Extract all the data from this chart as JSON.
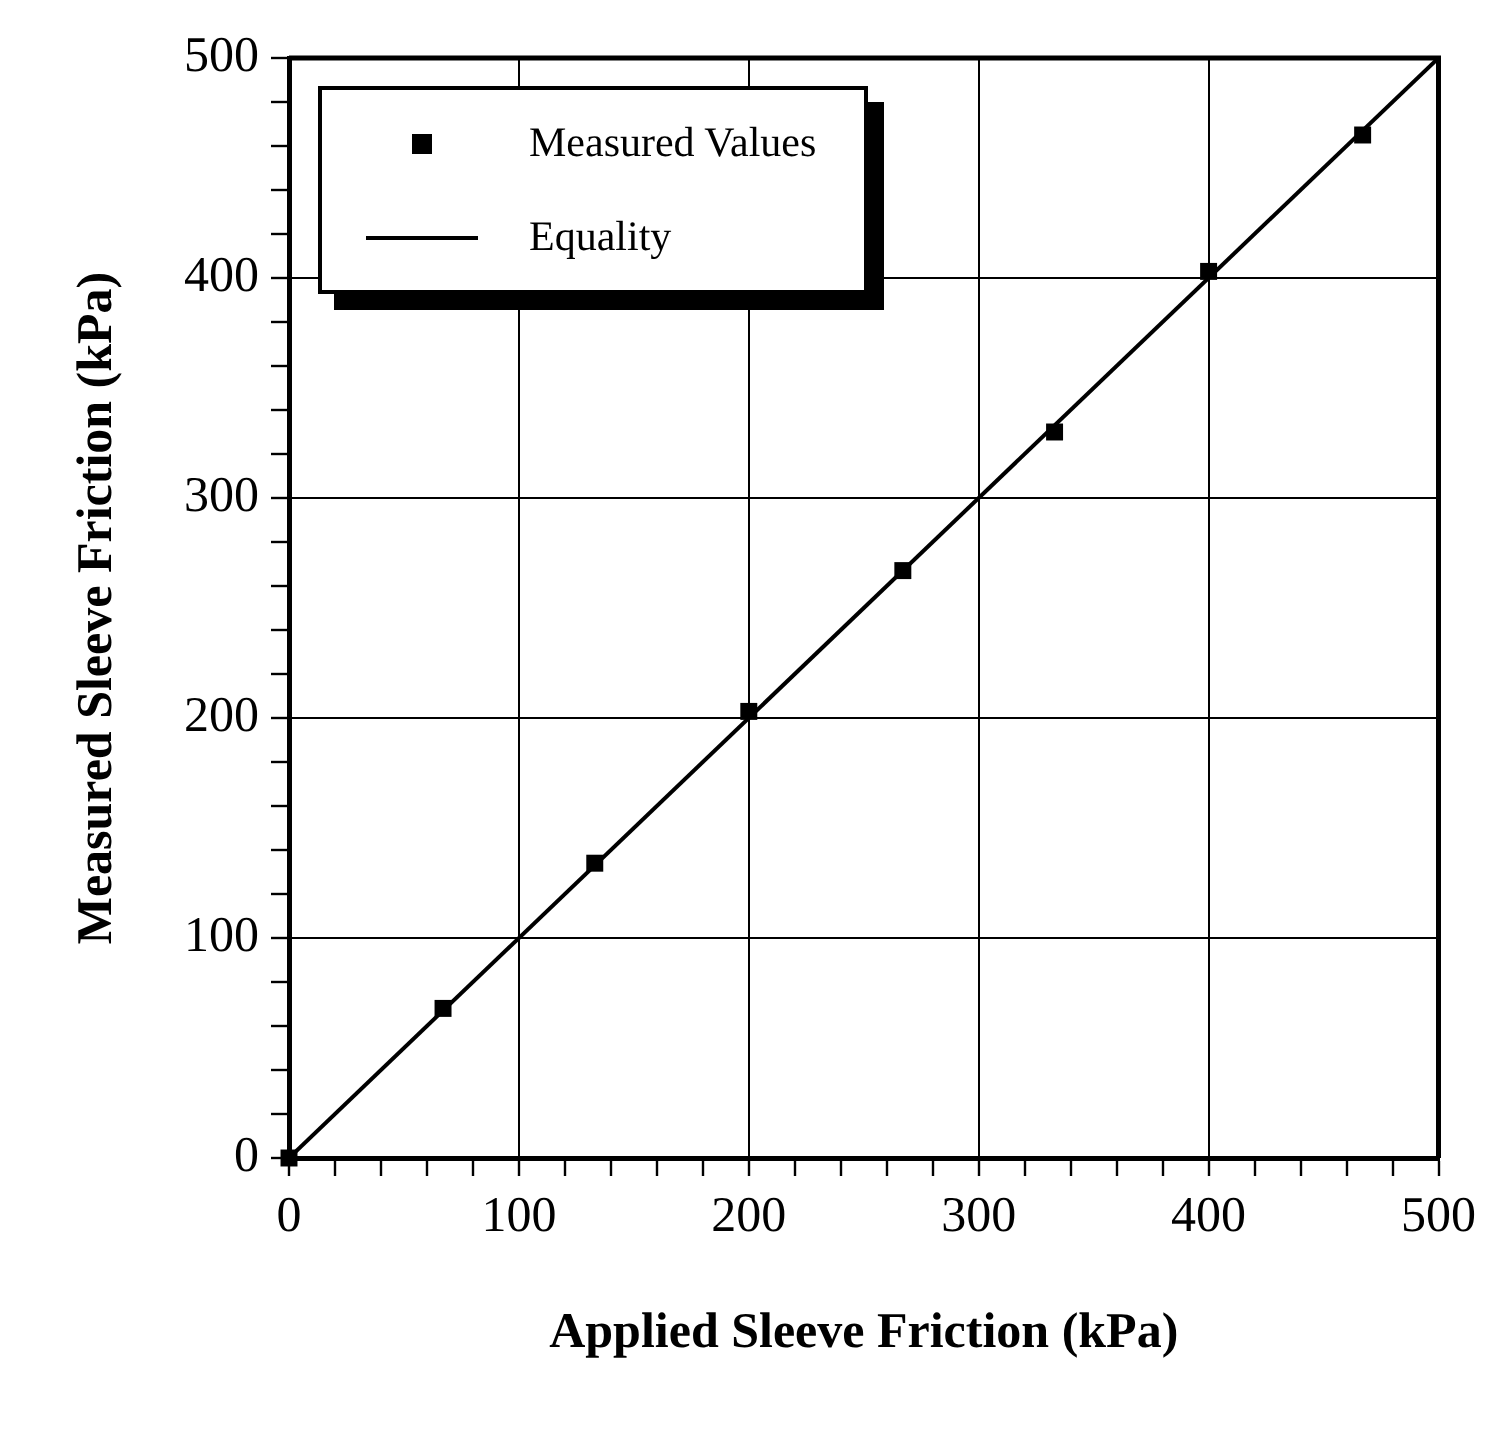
{
  "chart_data": {
    "type": "scatter",
    "xlabel": "Applied Sleeve Friction (kPa)",
    "ylabel": "Measured Sleeve Friction (kPa)",
    "series": [
      {
        "name": "Measured Values",
        "type": "scatter",
        "color": "#000000",
        "marker": "square",
        "x": [
          0,
          67,
          133,
          200,
          267,
          333,
          400,
          467
        ],
        "values": [
          0,
          68,
          134,
          203,
          267,
          330,
          403,
          465
        ]
      },
      {
        "name": "Equality",
        "type": "line",
        "color": "#000000",
        "marker": "none",
        "line_style": "solid",
        "x": [
          0,
          500
        ],
        "values": [
          0,
          500
        ]
      }
    ],
    "xlim": [
      0,
      500
    ],
    "ylim": [
      0,
      500
    ],
    "xticks": [
      0,
      {
        "value": 20,
        "label": null
      },
      {
        "value": 40,
        "label": null
      },
      {
        "value": 60,
        "label": null
      },
      {
        "value": 80,
        "label": null
      },
      100,
      {
        "value": 120,
        "label": null
      },
      {
        "value": 140,
        "label": null
      },
      {
        "value": 160,
        "label": null
      },
      {
        "value": 180,
        "label": null
      },
      200,
      {
        "value": 220,
        "label": null
      },
      {
        "value": 240,
        "label": null
      },
      {
        "value": 260,
        "label": null
      },
      {
        "value": 280,
        "label": null
      },
      300,
      {
        "value": 320,
        "label": null
      },
      {
        "value": 340,
        "label": null
      },
      {
        "value": 360,
        "label": null
      },
      {
        "value": 380,
        "label": null
      },
      400,
      {
        "value": 420,
        "label": null
      },
      {
        "value": 440,
        "label": null
      },
      {
        "value": 460,
        "label": null
      },
      {
        "value": 480,
        "label": null
      },
      500
    ],
    "yticks": [
      0,
      {
        "value": 20,
        "label": null
      },
      {
        "value": 40,
        "label": null
      },
      {
        "value": 60,
        "label": null
      },
      {
        "value": 80,
        "label": null
      },
      100,
      {
        "value": 120,
        "label": null
      },
      {
        "value": 140,
        "label": null
      },
      {
        "value": 160,
        "label": null
      },
      {
        "value": 180,
        "label": null
      },
      200,
      {
        "value": 220,
        "label": null
      },
      {
        "value": 240,
        "label": null
      },
      {
        "value": 260,
        "label": null
      },
      {
        "value": 280,
        "label": null
      },
      300,
      {
        "value": 320,
        "label": null
      },
      {
        "value": 340,
        "label": null
      },
      {
        "value": 360,
        "label": null
      },
      {
        "value": 380,
        "label": null
      },
      400,
      {
        "value": 420,
        "label": null
      },
      {
        "value": 440,
        "label": null
      },
      {
        "value": 460,
        "label": null
      },
      {
        "value": 480,
        "label": null
      },
      500
    ],
    "grid": true,
    "legend": "top left"
  }
}
